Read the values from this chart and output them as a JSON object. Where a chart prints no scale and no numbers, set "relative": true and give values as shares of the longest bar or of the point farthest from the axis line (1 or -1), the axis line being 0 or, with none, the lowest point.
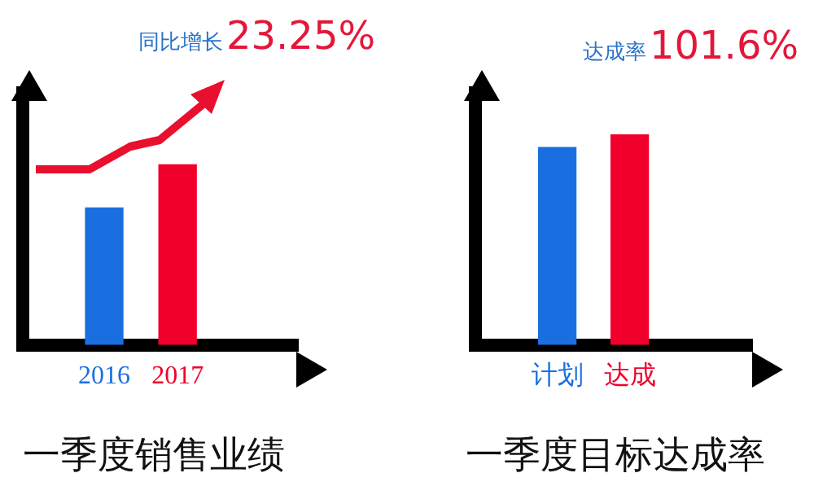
{
  "chart_data": [
    {
      "type": "bar",
      "title": "一季度销售业绩",
      "annotations": [
        "同比增长",
        "23.25%"
      ],
      "categories": [
        "2016",
        "2017"
      ],
      "values": [
        0.76,
        1
      ],
      "colors": [
        "#1a6fe0",
        "#f0002a"
      ],
      "relative": true
    },
    {
      "type": "bar",
      "title": "一季度目标达成率",
      "annotations": [
        "达成率",
        "101.6%"
      ],
      "categories": [
        "计划",
        "达成"
      ],
      "values": [
        0.94,
        1
      ],
      "colors": [
        "#1a6fe0",
        "#f0002a"
      ],
      "relative": true
    }
  ]
}
